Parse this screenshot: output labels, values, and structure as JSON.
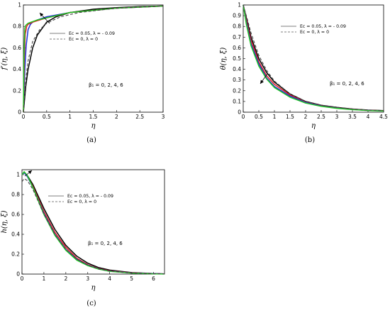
{
  "colors": {
    "solid_black": "#000000",
    "solid_blue": "#1e2fd8",
    "solid_red": "#e02020",
    "solid_green": "#22c322",
    "dashed": "#444444"
  },
  "chart_data": [
    {
      "type": "line",
      "caption": "(a)",
      "xlabel": "η",
      "ylabel": "f′(η, ξ)",
      "xlim": [
        0,
        3
      ],
      "ylim": [
        0,
        1
      ],
      "xticks": [
        "0",
        "0.5",
        "1",
        "1.5",
        "2",
        "2.5",
        "3"
      ],
      "yticks": [
        "0",
        "0.2",
        "0.4",
        "0.6",
        "0.8",
        "1"
      ],
      "legend": [
        "Ec = 0.05, λ = - 0.09",
        "Ec = 0, λ = 0"
      ],
      "annotation": "β₁ = 0, 2, 4, 6",
      "series": [
        {
          "color": "solid_black",
          "style": "solid",
          "x": [
            0,
            0.05,
            0.1,
            0.2,
            0.3,
            0.5,
            0.7,
            1,
            1.5,
            2,
            2.5,
            3
          ],
          "y": [
            0,
            0.24,
            0.4,
            0.6,
            0.72,
            0.84,
            0.89,
            0.93,
            0.96,
            0.975,
            0.985,
            0.99
          ]
        },
        {
          "color": "solid_blue",
          "style": "solid",
          "x": [
            0,
            0.03,
            0.06,
            0.1,
            0.15,
            0.2,
            0.3,
            0.5,
            1,
            2,
            3
          ],
          "y": [
            0,
            0.4,
            0.62,
            0.77,
            0.82,
            0.84,
            0.86,
            0.89,
            0.93,
            0.97,
            0.99
          ]
        },
        {
          "color": "solid_red",
          "style": "solid",
          "x": [
            0,
            0.02,
            0.04,
            0.07,
            0.1,
            0.2,
            0.5,
            1,
            2,
            3
          ],
          "y": [
            0,
            0.5,
            0.73,
            0.8,
            0.82,
            0.84,
            0.88,
            0.93,
            0.97,
            0.99
          ]
        },
        {
          "color": "solid_green",
          "style": "solid",
          "x": [
            0,
            0.01,
            0.03,
            0.05,
            0.1,
            0.3,
            0.6,
            1,
            2,
            3
          ],
          "y": [
            0,
            0.5,
            0.78,
            0.81,
            0.83,
            0.86,
            0.89,
            0.93,
            0.97,
            0.99
          ]
        },
        {
          "color": "dashed",
          "style": "dashed",
          "x": [
            0,
            0.05,
            0.1,
            0.2,
            0.35,
            0.5,
            0.8,
            1.2,
            2,
            3
          ],
          "y": [
            0,
            0.3,
            0.48,
            0.66,
            0.77,
            0.83,
            0.89,
            0.93,
            0.97,
            0.99
          ]
        }
      ]
    },
    {
      "type": "line",
      "caption": "(b)",
      "xlabel": "η",
      "ylabel": "θ(η, ξ)",
      "xlim": [
        0,
        4.5
      ],
      "ylim": [
        0,
        1
      ],
      "xticks": [
        "0",
        "0.5",
        "1",
        "1.5",
        "2",
        "2.5",
        "3",
        "3.5",
        "4",
        "4.5"
      ],
      "yticks": [
        "0",
        "0.1",
        "0.2",
        "0.3",
        "0.4",
        "0.5",
        "0.6",
        "0.7",
        "0.8",
        "0.9",
        "1"
      ],
      "legend": [
        "Ec = 0.05, λ = - 0.09",
        "Ec = 0, λ = 0"
      ],
      "annotation": "β₁ = 0, 2, 4, 6",
      "series": [
        {
          "color": "solid_black",
          "style": "solid",
          "x": [
            0,
            0.1,
            0.25,
            0.5,
            0.75,
            1,
            1.5,
            2,
            2.5,
            3,
            3.5,
            4,
            4.5
          ],
          "y": [
            1,
            0.88,
            0.7,
            0.5,
            0.37,
            0.28,
            0.17,
            0.1,
            0.065,
            0.045,
            0.03,
            0.02,
            0.015
          ]
        },
        {
          "color": "solid_red",
          "style": "solid",
          "x": [
            0,
            0.1,
            0.25,
            0.5,
            0.75,
            1,
            1.5,
            2,
            2.5,
            3,
            3.5,
            4,
            4.5
          ],
          "y": [
            1,
            0.86,
            0.67,
            0.47,
            0.34,
            0.26,
            0.16,
            0.095,
            0.06,
            0.04,
            0.028,
            0.018,
            0.013
          ]
        },
        {
          "color": "solid_blue",
          "style": "solid",
          "x": [
            0,
            0.1,
            0.25,
            0.5,
            0.75,
            1,
            1.5,
            2,
            2.5,
            3,
            3.5,
            4,
            4.5
          ],
          "y": [
            1,
            0.84,
            0.64,
            0.45,
            0.32,
            0.24,
            0.15,
            0.09,
            0.057,
            0.038,
            0.026,
            0.017,
            0.012
          ]
        },
        {
          "color": "solid_green",
          "style": "solid",
          "x": [
            0,
            0.1,
            0.25,
            0.5,
            0.75,
            1,
            1.5,
            2,
            2.5,
            3,
            3.5,
            4,
            4.5
          ],
          "y": [
            1,
            0.82,
            0.62,
            0.43,
            0.31,
            0.23,
            0.14,
            0.085,
            0.054,
            0.036,
            0.024,
            0.016,
            0.011
          ]
        },
        {
          "color": "dashed",
          "style": "dashed",
          "x": [
            0,
            0.1,
            0.25,
            0.5,
            0.75,
            1,
            1.5,
            2,
            2.5,
            3,
            3.5,
            4,
            4.5
          ],
          "y": [
            1,
            0.9,
            0.74,
            0.53,
            0.39,
            0.29,
            0.17,
            0.1,
            0.065,
            0.045,
            0.03,
            0.02,
            0.015
          ]
        }
      ]
    },
    {
      "type": "line",
      "caption": "(c)",
      "xlabel": "η",
      "ylabel": "h(η, ξ)",
      "xlim": [
        0,
        6.5
      ],
      "ylim": [
        0,
        1.05
      ],
      "xticks": [
        "0",
        "1",
        "2",
        "3",
        "4",
        "5",
        "6"
      ],
      "yticks": [
        "0",
        "0.2",
        "0.4",
        "0.6",
        "0.8",
        "1"
      ],
      "legend": [
        "Ec = 0.05, λ = - 0.09",
        "Ec = 0, λ = 0"
      ],
      "annotation": "β₁ = 0, 2, 4, 6",
      "series": [
        {
          "color": "solid_black",
          "style": "solid",
          "x": [
            0,
            0.1,
            0.25,
            0.5,
            1,
            1.5,
            2,
            2.5,
            3,
            3.5,
            4,
            5,
            6,
            6.5
          ],
          "y": [
            1,
            1.02,
            0.99,
            0.9,
            0.66,
            0.45,
            0.29,
            0.18,
            0.11,
            0.065,
            0.04,
            0.015,
            0.005,
            0.002
          ]
        },
        {
          "color": "solid_red",
          "style": "solid",
          "x": [
            0,
            0.1,
            0.25,
            0.5,
            1,
            1.5,
            2,
            2.5,
            3,
            3.5,
            4,
            5,
            6,
            6.5
          ],
          "y": [
            1,
            1.02,
            0.98,
            0.88,
            0.63,
            0.42,
            0.27,
            0.16,
            0.095,
            0.055,
            0.033,
            0.012,
            0.004,
            0.002
          ]
        },
        {
          "color": "solid_blue",
          "style": "solid",
          "x": [
            0,
            0.1,
            0.25,
            0.5,
            1,
            1.5,
            2,
            2.5,
            3,
            3.5,
            4,
            5,
            6,
            6.5
          ],
          "y": [
            1,
            1.02,
            0.98,
            0.87,
            0.61,
            0.4,
            0.25,
            0.15,
            0.09,
            0.052,
            0.03,
            0.011,
            0.004,
            0.002
          ]
        },
        {
          "color": "solid_green",
          "style": "solid",
          "x": [
            0,
            0.1,
            0.25,
            0.5,
            1,
            1.5,
            2,
            2.5,
            3,
            3.5,
            4,
            5,
            6,
            6.5
          ],
          "y": [
            1,
            1.03,
            0.99,
            0.87,
            0.6,
            0.39,
            0.24,
            0.14,
            0.085,
            0.05,
            0.028,
            0.01,
            0.003,
            0.001
          ]
        },
        {
          "color": "dashed",
          "style": "dashed",
          "x": [
            0,
            0.1,
            0.25,
            0.5,
            1,
            1.5,
            2,
            2.5,
            3,
            3.5,
            4,
            5,
            6,
            6.5
          ],
          "y": [
            0.93,
            0.96,
            0.94,
            0.85,
            0.6,
            0.4,
            0.25,
            0.15,
            0.09,
            0.052,
            0.03,
            0.011,
            0.004,
            0.002
          ]
        }
      ]
    }
  ]
}
